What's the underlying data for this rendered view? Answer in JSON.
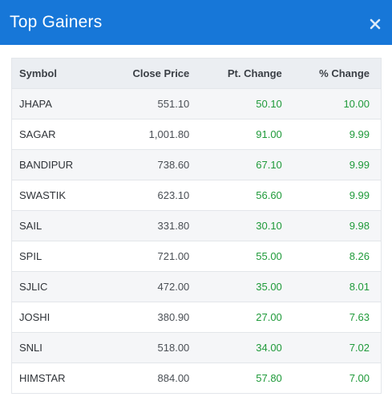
{
  "header": {
    "title": "Top Gainers",
    "close_icon": "close-icon",
    "background_color": "#1777d8"
  },
  "table": {
    "columns": [
      "Symbol",
      "Close Price",
      "Pt. Change",
      "% Change"
    ],
    "rows": [
      {
        "symbol": "JHAPA",
        "close_price": "551.10",
        "pt_change": "50.10",
        "pct_change": "10.00"
      },
      {
        "symbol": "SAGAR",
        "close_price": "1,001.80",
        "pt_change": "91.00",
        "pct_change": "9.99"
      },
      {
        "symbol": "BANDIPUR",
        "close_price": "738.60",
        "pt_change": "67.10",
        "pct_change": "9.99"
      },
      {
        "symbol": "SWASTIK",
        "close_price": "623.10",
        "pt_change": "56.60",
        "pct_change": "9.99"
      },
      {
        "symbol": "SAIL",
        "close_price": "331.80",
        "pt_change": "30.10",
        "pct_change": "9.98"
      },
      {
        "symbol": "SPIL",
        "close_price": "721.00",
        "pt_change": "55.00",
        "pct_change": "8.26"
      },
      {
        "symbol": "SJLIC",
        "close_price": "472.00",
        "pt_change": "35.00",
        "pct_change": "8.01"
      },
      {
        "symbol": "JOSHI",
        "close_price": "380.90",
        "pt_change": "27.00",
        "pct_change": "7.63"
      },
      {
        "symbol": "SNLI",
        "close_price": "518.00",
        "pt_change": "34.00",
        "pct_change": "7.02"
      },
      {
        "symbol": "HIMSTAR",
        "close_price": "884.00",
        "pt_change": "57.80",
        "pct_change": "7.00"
      }
    ],
    "positive_color": "#1f9a3a"
  }
}
